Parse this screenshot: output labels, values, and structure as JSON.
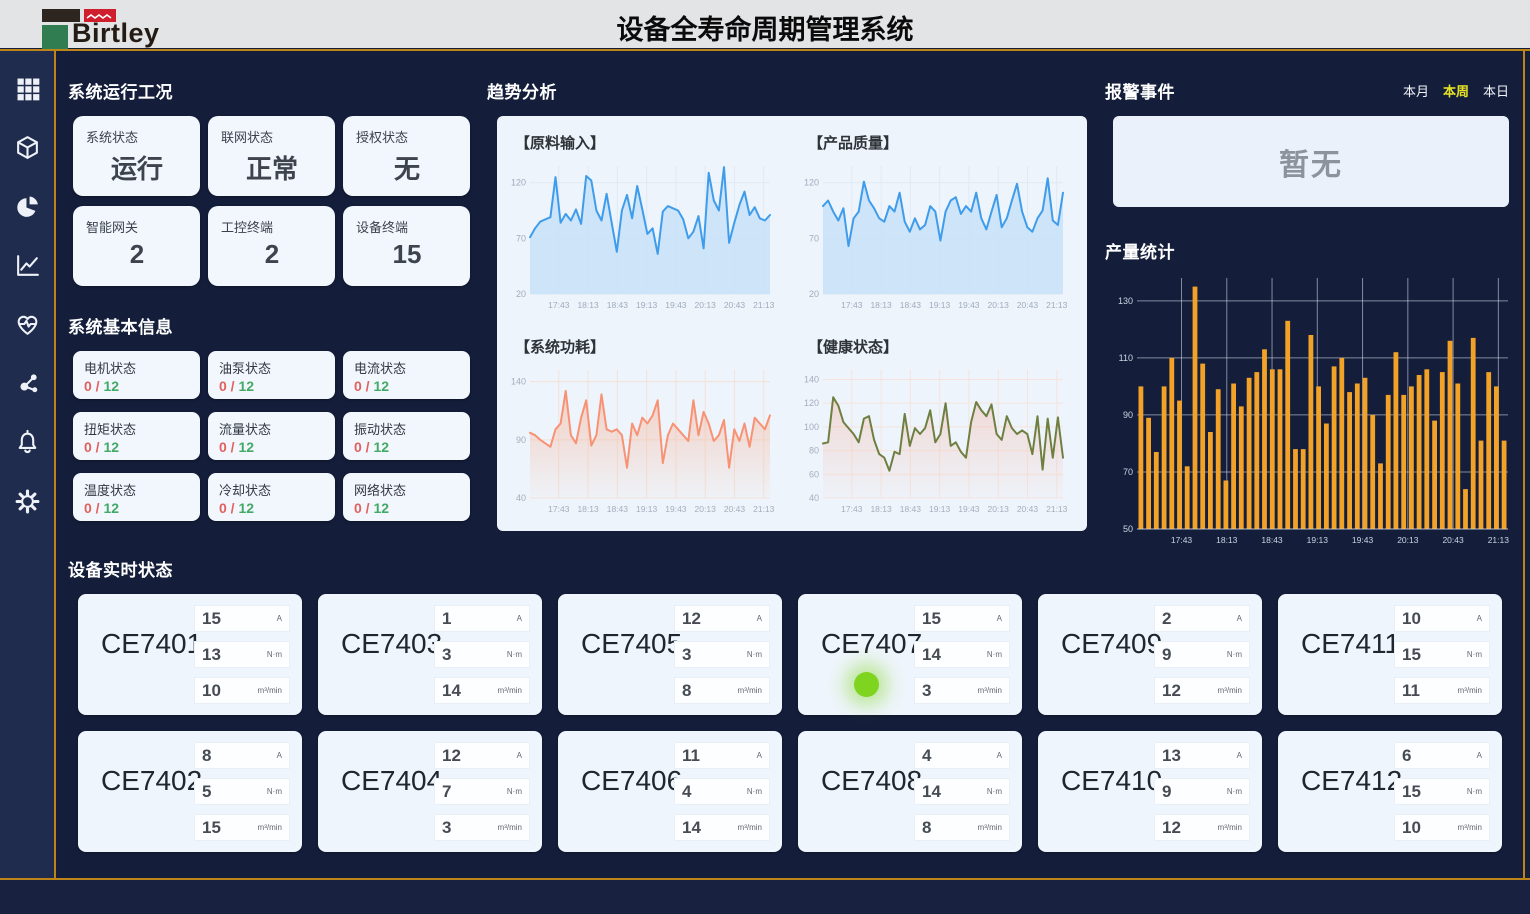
{
  "header": {
    "brand": "Birtley",
    "title": "设备全寿命周期管理系统"
  },
  "sidebar": {
    "items": [
      "dashboard",
      "assets",
      "statistics",
      "trends",
      "health",
      "topology",
      "alerts",
      "settings"
    ]
  },
  "panels": {
    "system_status": {
      "title": "系统运行工况",
      "cards": [
        {
          "label": "系统状态",
          "value": "运行"
        },
        {
          "label": "联网状态",
          "value": "正常"
        },
        {
          "label": "授权状态",
          "value": "无"
        },
        {
          "label": "智能网关",
          "value": "2"
        },
        {
          "label": "工控终端",
          "value": "2"
        },
        {
          "label": "设备终端",
          "value": "15"
        }
      ]
    },
    "system_info": {
      "title": "系统基本信息",
      "cards": [
        {
          "label": "电机状态",
          "bad": "0 /",
          "good": "12"
        },
        {
          "label": "油泵状态",
          "bad": "0 /",
          "good": "12"
        },
        {
          "label": "电流状态",
          "bad": "0 /",
          "good": "12"
        },
        {
          "label": "扭矩状态",
          "bad": "0 /",
          "good": "12"
        },
        {
          "label": "流量状态",
          "bad": "0 /",
          "good": "12"
        },
        {
          "label": "振动状态",
          "bad": "0 /",
          "good": "12"
        },
        {
          "label": "温度状态",
          "bad": "0 /",
          "good": "12"
        },
        {
          "label": "冷却状态",
          "bad": "0 /",
          "good": "12"
        },
        {
          "label": "网络状态",
          "bad": "0 /",
          "good": "12"
        }
      ]
    },
    "trend": {
      "title": "趋势分析"
    },
    "alarm": {
      "title": "报警事件",
      "tabs": [
        {
          "label": "本月",
          "active": false
        },
        {
          "label": "本周",
          "active": true
        },
        {
          "label": "本日",
          "active": false
        }
      ],
      "empty_text": "暂无"
    },
    "production": {
      "title": "产量统计"
    },
    "devices": {
      "title": "设备实时状态",
      "units": [
        "A",
        "N·m",
        "m³/min"
      ],
      "cards": [
        {
          "name": "CE7401",
          "values": [
            15,
            13,
            10
          ],
          "indicator": false
        },
        {
          "name": "CE7403",
          "values": [
            1,
            3,
            14
          ],
          "indicator": false
        },
        {
          "name": "CE7405",
          "values": [
            12,
            3,
            8
          ],
          "indicator": false
        },
        {
          "name": "CE7407",
          "values": [
            15,
            14,
            3
          ],
          "indicator": true
        },
        {
          "name": "CE7409",
          "values": [
            2,
            9,
            12
          ],
          "indicator": false
        },
        {
          "name": "CE7411",
          "values": [
            10,
            15,
            11
          ],
          "indicator": false
        },
        {
          "name": "CE7402",
          "values": [
            8,
            5,
            15
          ],
          "indicator": false
        },
        {
          "name": "CE7404",
          "values": [
            12,
            7,
            3
          ],
          "indicator": false
        },
        {
          "name": "CE7406",
          "values": [
            11,
            4,
            14
          ],
          "indicator": false
        },
        {
          "name": "CE7408",
          "values": [
            4,
            14,
            8
          ],
          "indicator": false
        },
        {
          "name": "CE7410",
          "values": [
            13,
            9,
            12
          ],
          "indicator": false
        },
        {
          "name": "CE7412",
          "values": [
            6,
            15,
            10
          ],
          "indicator": false
        }
      ]
    }
  },
  "colors": {
    "accent_gold": "#bd8418",
    "tab_active_yellow": "#e6e324",
    "status_bad_red": "#e2605e",
    "status_good_green": "#43a966",
    "indicator_green": "#7fd41f"
  },
  "chart_data": [
    {
      "id": "raw-input",
      "type": "line",
      "title": "【原料输入】",
      "line_color": "#3f9ceb",
      "area_color": "#c9e2f8",
      "grid_color": "#dfeaf5",
      "axis_color": "#9fabbd",
      "x_labels": [
        "17:43",
        "18:13",
        "18:43",
        "19:13",
        "19:43",
        "20:13",
        "20:43",
        "21:13"
      ],
      "yticks": [
        20,
        70,
        120
      ],
      "ylim": [
        20,
        135
      ],
      "values": [
        71,
        79,
        85,
        87,
        89,
        125,
        84,
        92,
        86,
        96,
        83,
        126,
        122,
        95,
        86,
        110,
        84,
        58,
        95,
        109,
        88,
        117,
        96,
        74,
        79,
        56,
        94,
        99,
        97,
        95,
        87,
        70,
        76,
        90,
        61,
        129,
        104,
        95,
        134,
        66,
        84,
        100,
        112,
        91,
        98,
        88,
        86,
        91
      ]
    },
    {
      "id": "product-quality",
      "type": "line",
      "title": "【产品质量】",
      "line_color": "#3f9ceb",
      "area_color": "#c9e2f8",
      "grid_color": "#dfeaf5",
      "axis_color": "#9fabbd",
      "x_labels": [
        "17:43",
        "18:13",
        "18:43",
        "19:13",
        "19:43",
        "20:13",
        "20:43",
        "21:13"
      ],
      "yticks": [
        20,
        70,
        120
      ],
      "ylim": [
        20,
        135
      ],
      "values": [
        99,
        104,
        94,
        86,
        97,
        63,
        88,
        94,
        121,
        104,
        97,
        88,
        85,
        99,
        94,
        111,
        85,
        76,
        88,
        78,
        82,
        99,
        94,
        68,
        94,
        104,
        107,
        92,
        99,
        94,
        111,
        88,
        78,
        94,
        109,
        80,
        88,
        104,
        119,
        94,
        80,
        76,
        88,
        95,
        124,
        86,
        82,
        111
      ]
    },
    {
      "id": "power",
      "type": "line",
      "title": "【系统功耗】",
      "line_color": "#f79274",
      "area_from": "rgba(248,165,130,0.45)",
      "area_to": "rgba(248,165,130,0.03)",
      "grid_color": "#f3e2d8",
      "axis_color": "#a3aebd",
      "x_labels": [
        "17:43",
        "18:13",
        "18:43",
        "19:13",
        "19:43",
        "20:13",
        "20:43",
        "21:13"
      ],
      "yticks": [
        40,
        90,
        140
      ],
      "ylim": [
        40,
        150
      ],
      "values": [
        96,
        94,
        90,
        87,
        84,
        99,
        104,
        132,
        94,
        87,
        109,
        124,
        85,
        94,
        129,
        99,
        97,
        99,
        94,
        66,
        104,
        94,
        109,
        104,
        111,
        124,
        70,
        94,
        104,
        99,
        94,
        89,
        124,
        94,
        114,
        104,
        89,
        94,
        107,
        66,
        99,
        89,
        104,
        84,
        109,
        104,
        99,
        111
      ]
    },
    {
      "id": "health",
      "type": "line",
      "title": "【健康状态】",
      "line_color": "#6f7f41",
      "area_from": "rgba(244,176,158,0.40)",
      "area_to": "rgba(244,176,158,0.03)",
      "grid_color": "#f5e4de",
      "axis_color": "#a3aebd",
      "x_labels": [
        "17:43",
        "18:13",
        "18:43",
        "19:13",
        "19:43",
        "20:13",
        "20:43",
        "21:13"
      ],
      "yticks": [
        40,
        60,
        80,
        100,
        120,
        140
      ],
      "ylim": [
        40,
        148
      ],
      "values": [
        86,
        87,
        125,
        118,
        104,
        99,
        94,
        87,
        107,
        109,
        89,
        77,
        74,
        63,
        79,
        77,
        111,
        84,
        99,
        94,
        99,
        114,
        87,
        94,
        120,
        84,
        87,
        79,
        74,
        104,
        121,
        114,
        109,
        119,
        94,
        89,
        109,
        99,
        94,
        97,
        94,
        77,
        109,
        64,
        107,
        74,
        108,
        74
      ]
    },
    {
      "id": "production",
      "type": "bar",
      "title": "产量统计",
      "bar_color": "#f2a227",
      "grid_color": "rgba(222,229,240,0.55)",
      "axis_color": "#ccd4e2",
      "x_labels": [
        "17:43",
        "18:13",
        "18:43",
        "19:13",
        "19:43",
        "20:13",
        "20:43",
        "21:13"
      ],
      "yticks": [
        50,
        70,
        90,
        110,
        130
      ],
      "ylim": [
        50,
        138
      ],
      "values": [
        100,
        89,
        77,
        100,
        110,
        95,
        72,
        135,
        108,
        84,
        99,
        67,
        101,
        93,
        103,
        105,
        113,
        106,
        106,
        123,
        78,
        78,
        118,
        100,
        87,
        107,
        110,
        98,
        101,
        103,
        90,
        73,
        97,
        112,
        97,
        100,
        104,
        106,
        88,
        105,
        116,
        101,
        64,
        117,
        81,
        105,
        100,
        81
      ]
    }
  ]
}
